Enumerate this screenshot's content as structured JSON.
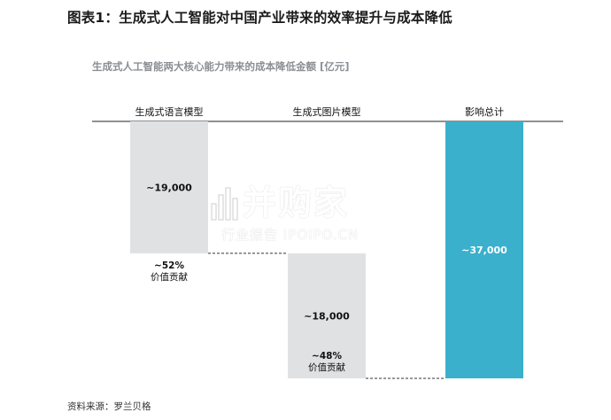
{
  "figure": {
    "title": "图表1：生成式人工智能对中国产业带来的效率提升与成本降低",
    "source": "资料来源：罗兰贝格"
  },
  "colors": {
    "gray_bar": "#e0e1e3",
    "total_bar": "#3ab0cc",
    "axis": "#222222",
    "connector": "#333333"
  },
  "watermark": {
    "brand": "并购家",
    "tagline": "行业报告 IPOIPO.CN"
  },
  "chart_data": {
    "type": "waterfall",
    "title": "生成式人工智能两大核心能力带来的成本降低金额 [亿元]",
    "categories": [
      "生成式语言模型",
      "生成式图片模型",
      "影响总计"
    ],
    "values": [
      19000,
      18000,
      37000
    ],
    "value_labels": [
      "~19,000",
      "~18,000",
      "~37,000"
    ],
    "shares": [
      "~52%",
      "~48%",
      ""
    ],
    "share_caption": "价值贡献",
    "ylim": [
      0,
      37000
    ]
  }
}
